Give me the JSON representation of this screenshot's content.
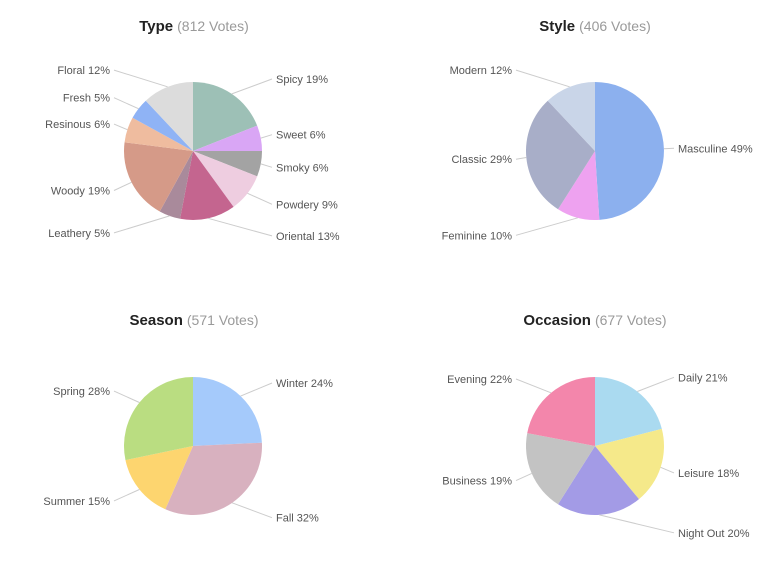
{
  "chart_data": [
    {
      "type": "pie",
      "title": "Type",
      "votes_label": "(812 Votes)",
      "slices": [
        {
          "label": "Spicy 19%",
          "value": 19,
          "color": "#9dc0b6"
        },
        {
          "label": "Sweet 6%",
          "value": 6,
          "color": "#d9a6f5"
        },
        {
          "label": "Smoky 6%",
          "value": 6,
          "color": "#a3a3a3"
        },
        {
          "label": "Powdery 9%",
          "value": 9,
          "color": "#eecde0"
        },
        {
          "label": "Oriental 13%",
          "value": 13,
          "color": "#c4658f"
        },
        {
          "label": "Leathery 5%",
          "value": 5,
          "color": "#a98a9b"
        },
        {
          "label": "Woody 19%",
          "value": 19,
          "color": "#d59a88"
        },
        {
          "label": "Resinous 6%",
          "value": 6,
          "color": "#efbc9f"
        },
        {
          "label": "Fresh 5%",
          "value": 5,
          "color": "#8fb3f5"
        },
        {
          "label": "Floral 12%",
          "value": 12,
          "color": "#dcdcdc"
        }
      ]
    },
    {
      "type": "pie",
      "title": "Style",
      "votes_label": "(406 Votes)",
      "slices": [
        {
          "label": "Masculine 49%",
          "value": 49,
          "color": "#8cb0ee"
        },
        {
          "label": "Feminine 10%",
          "value": 10,
          "color": "#eea2f0"
        },
        {
          "label": "Classic 29%",
          "value": 29,
          "color": "#a8aec8"
        },
        {
          "label": "Modern 12%",
          "value": 12,
          "color": "#c9d5e8"
        }
      ]
    },
    {
      "type": "pie",
      "title": "Season",
      "votes_label": "(571 Votes)",
      "slices": [
        {
          "label": "Winter 24%",
          "value": 24,
          "color": "#a5cafb"
        },
        {
          "label": "Fall 32%",
          "value": 32,
          "color": "#d8b1bf"
        },
        {
          "label": "Summer 15%",
          "value": 15,
          "color": "#fdd56f"
        },
        {
          "label": "Spring 28%",
          "value": 28,
          "color": "#badd81"
        }
      ]
    },
    {
      "type": "pie",
      "title": "Occasion",
      "votes_label": "(677 Votes)",
      "slices": [
        {
          "label": "Daily 21%",
          "value": 21,
          "color": "#aadaf0"
        },
        {
          "label": "Leisure 18%",
          "value": 18,
          "color": "#f5e98a"
        },
        {
          "label": "Night Out 20%",
          "value": 20,
          "color": "#a39be6"
        },
        {
          "label": "Business 19%",
          "value": 19,
          "color": "#c3c3c3"
        },
        {
          "label": "Evening 22%",
          "value": 22,
          "color": "#f386ab"
        }
      ]
    }
  ]
}
